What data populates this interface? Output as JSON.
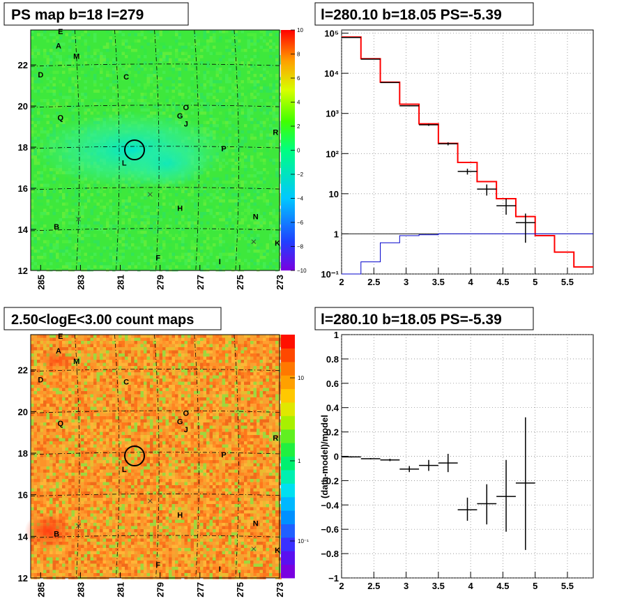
{
  "panels": {
    "ps_map": {
      "title": "PS map b=18 l=279",
      "x_ticks": [
        "285",
        "283",
        "281",
        "279",
        "277",
        "275",
        "273"
      ],
      "y_ticks": [
        "12",
        "14",
        "16",
        "18",
        "20",
        "22"
      ],
      "colorbar_ticks": [
        "10",
        "8",
        "6",
        "4",
        "2",
        "0",
        "−2",
        "−4",
        "−6",
        "−8",
        "−10"
      ]
    },
    "count_map": {
      "title": "2.50<logE<3.00 count maps",
      "x_ticks": [
        "285",
        "283",
        "281",
        "279",
        "277",
        "275",
        "273"
      ],
      "y_ticks": [
        "12",
        "14",
        "16",
        "18",
        "20",
        "22"
      ],
      "colorbar_ticks": [
        "10",
        "1",
        "10⁻¹"
      ]
    },
    "spectrum": {
      "title": "l=280.10 b=18.05 PS=-5.39"
    },
    "residual": {
      "title": "l=280.10 b=18.05 PS=-5.39"
    }
  },
  "source_labels": [
    {
      "name": "A",
      "l": 284.1,
      "b": 22.8
    },
    {
      "name": "B",
      "l": 284.2,
      "b": 14.0
    },
    {
      "name": "C",
      "l": 280.7,
      "b": 21.3
    },
    {
      "name": "D",
      "l": 285.0,
      "b": 21.4
    },
    {
      "name": "E",
      "l": 284.0,
      "b": 23.5
    },
    {
      "name": "F",
      "l": 279.1,
      "b": 12.5
    },
    {
      "name": "G",
      "l": 278.0,
      "b": 19.4
    },
    {
      "name": "H",
      "l": 278.0,
      "b": 14.9
    },
    {
      "name": "I",
      "l": 276.0,
      "b": 12.3
    },
    {
      "name": "J",
      "l": 277.7,
      "b": 19.0
    },
    {
      "name": "K",
      "l": 273.1,
      "b": 13.2
    },
    {
      "name": "L",
      "l": 280.8,
      "b": 17.1
    },
    {
      "name": "M",
      "l": 283.2,
      "b": 22.3
    },
    {
      "name": "N",
      "l": 274.2,
      "b": 14.5
    },
    {
      "name": "O",
      "l": 277.7,
      "b": 19.8
    },
    {
      "name": "P",
      "l": 275.8,
      "b": 17.8
    },
    {
      "name": "Q",
      "l": 284.0,
      "b": 19.3
    },
    {
      "name": "R",
      "l": 273.2,
      "b": 18.6
    }
  ],
  "chart_data": [
    {
      "type": "heatmap",
      "title": "PS map b=18 l=279",
      "xlabel": "",
      "ylabel": "",
      "xlim": [
        285.5,
        273.0
      ],
      "ylim": [
        12.0,
        23.7
      ],
      "zlim": [
        -10,
        10
      ],
      "note_marker_circle": {
        "l": 279.9,
        "b": 18.0
      }
    },
    {
      "type": "line",
      "title": "l=280.10 b=18.05 PS=-5.39",
      "log_y": true,
      "xlim": [
        2.0,
        5.9
      ],
      "ylim": [
        0.1,
        120000
      ],
      "x_ticks": [
        "2",
        "2.5",
        "3",
        "3.5",
        "4",
        "4.5",
        "5",
        "5.5"
      ],
      "y_ticks": [
        "10⁻¹",
        "1",
        "10",
        "10²",
        "10³",
        "10⁴",
        "10⁵"
      ],
      "bin_edges": [
        2.0,
        2.3,
        2.6,
        2.9,
        3.2,
        3.5,
        3.8,
        4.1,
        4.4,
        4.7,
        5.0,
        5.3,
        5.6,
        5.9
      ],
      "series": [
        {
          "name": "",
          "color": "#ff0000",
          "values": [
            80000,
            23000,
            6000,
            1700,
            550,
            180,
            60,
            20,
            7.5,
            2.7,
            0.9,
            0.35,
            0.15
          ]
        },
        {
          "name": "",
          "color": "#0000cc",
          "values": [
            0.1,
            0.2,
            0.6,
            0.9,
            0.95,
            1,
            1,
            1,
            1,
            1,
            1,
            1,
            1
          ]
        }
      ],
      "points": [
        {
          "x": 2.15,
          "y": 78000,
          "ylo": 77500,
          "yhi": 78500
        },
        {
          "x": 2.45,
          "y": 22500,
          "ylo": 22300,
          "yhi": 22700
        },
        {
          "x": 2.75,
          "y": 5900,
          "ylo": 5800,
          "yhi": 6000
        },
        {
          "x": 3.05,
          "y": 1550,
          "ylo": 1500,
          "yhi": 1600
        },
        {
          "x": 3.35,
          "y": 520,
          "ylo": 490,
          "yhi": 550
        },
        {
          "x": 3.65,
          "y": 175,
          "ylo": 160,
          "yhi": 190
        },
        {
          "x": 3.95,
          "y": 36,
          "ylo": 30,
          "yhi": 42
        },
        {
          "x": 4.25,
          "y": 13,
          "ylo": 9,
          "yhi": 17
        },
        {
          "x": 4.55,
          "y": 5,
          "ylo": 3,
          "yhi": 7.5
        },
        {
          "x": 4.85,
          "y": 1.9,
          "ylo": 0.6,
          "yhi": 3.2
        }
      ]
    },
    {
      "type": "heatmap",
      "title": "2.50<logE<3.00 count maps",
      "xlabel": "",
      "ylabel": "",
      "xlim": [
        285.5,
        273.0
      ],
      "ylim": [
        12.0,
        23.7
      ],
      "zlim": [
        0.05,
        30
      ],
      "log_z": true
    },
    {
      "type": "scatter",
      "title": "l=280.10 b=18.05 PS=-5.39",
      "xlabel": "",
      "ylabel": "(data-model)/model",
      "xlim": [
        2.0,
        5.9
      ],
      "ylim": [
        -1.0,
        1.0
      ],
      "x_ticks": [
        "2",
        "2.5",
        "3",
        "3.5",
        "4",
        "4.5",
        "5",
        "5.5"
      ],
      "y_ticks": [
        "−1",
        "−0.8",
        "−0.6",
        "−0.4",
        "−0.2",
        "0",
        "0.2",
        "0.4",
        "0.6",
        "0.8",
        "1"
      ],
      "points": [
        {
          "x": 2.15,
          "y": -0.005,
          "ylo": -0.01,
          "yhi": 0.0
        },
        {
          "x": 2.45,
          "y": -0.02,
          "ylo": -0.025,
          "yhi": -0.015
        },
        {
          "x": 2.75,
          "y": -0.03,
          "ylo": -0.04,
          "yhi": -0.02
        },
        {
          "x": 3.05,
          "y": -0.105,
          "ylo": -0.13,
          "yhi": -0.08
        },
        {
          "x": 3.35,
          "y": -0.075,
          "ylo": -0.12,
          "yhi": -0.03
        },
        {
          "x": 3.65,
          "y": -0.055,
          "ylo": -0.13,
          "yhi": 0.02
        },
        {
          "x": 3.95,
          "y": -0.44,
          "ylo": -0.53,
          "yhi": -0.34
        },
        {
          "x": 4.25,
          "y": -0.39,
          "ylo": -0.56,
          "yhi": -0.23
        },
        {
          "x": 4.55,
          "y": -0.33,
          "ylo": -0.62,
          "yhi": -0.03
        },
        {
          "x": 4.85,
          "y": -0.22,
          "ylo": -0.77,
          "yhi": 0.32
        }
      ]
    }
  ]
}
